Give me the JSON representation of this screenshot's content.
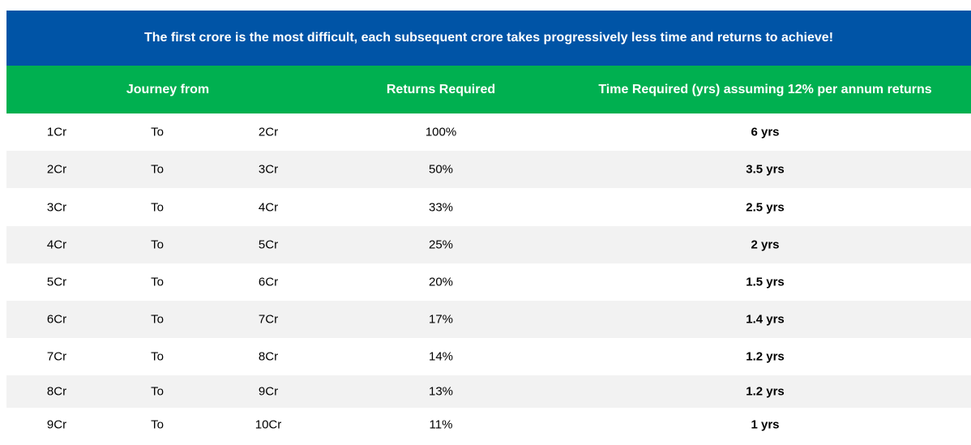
{
  "title": "The first crore is the most difficult, each subsequent crore takes progressively less time and returns to achieve!",
  "headers": {
    "journey": "Journey from",
    "returns": "Returns Required",
    "time": "Time Required (yrs) assuming 12% per annum returns"
  },
  "colors": {
    "title_bg": "#0054a6",
    "header_bg": "#00b050",
    "alt_row_bg": "#f2f2f2"
  },
  "rows": [
    {
      "from": "1Cr",
      "to": "To",
      "dest": "2Cr",
      "returns": "100%",
      "time": "6 yrs"
    },
    {
      "from": "2Cr",
      "to": "To",
      "dest": "3Cr",
      "returns": "50%",
      "time": "3.5 yrs"
    },
    {
      "from": "3Cr",
      "to": "To",
      "dest": "4Cr",
      "returns": "33%",
      "time": "2.5 yrs"
    },
    {
      "from": "4Cr",
      "to": "To",
      "dest": "5Cr",
      "returns": "25%",
      "time": "2 yrs"
    },
    {
      "from": "5Cr",
      "to": "To",
      "dest": "6Cr",
      "returns": "20%",
      "time": "1.5 yrs"
    },
    {
      "from": "6Cr",
      "to": "To",
      "dest": "7Cr",
      "returns": "17%",
      "time": "1.4 yrs"
    },
    {
      "from": "7Cr",
      "to": "To",
      "dest": "8Cr",
      "returns": "14%",
      "time": "1.2 yrs"
    },
    {
      "from": "8Cr",
      "to": "To",
      "dest": "9Cr",
      "returns": "13%",
      "time": "1.2 yrs"
    },
    {
      "from": "9Cr",
      "to": "To",
      "dest": "10Cr",
      "returns": "11%",
      "time": "1 yrs"
    }
  ]
}
